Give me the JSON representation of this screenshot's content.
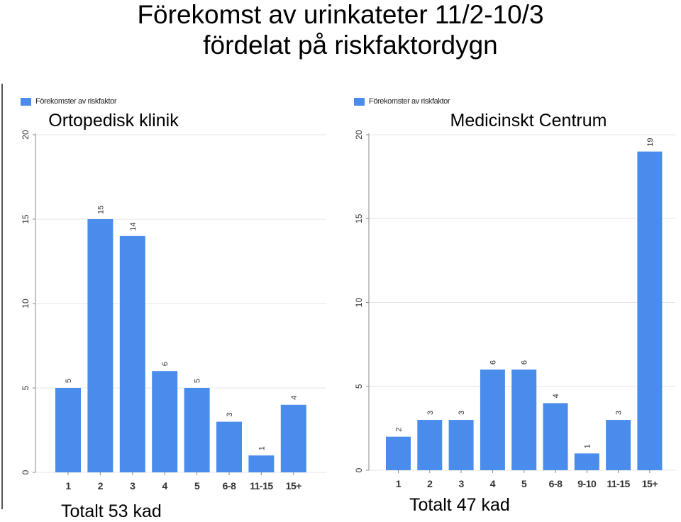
{
  "page": {
    "title_line1": "Förekomst av urinkateter 11/2-10/3",
    "title_line2": "fördelat på riskfaktordygn"
  },
  "colors": {
    "bar": "#4a8cec",
    "axis": "#888888",
    "grid": "#cccccc",
    "separator": "#555555"
  },
  "chart_data": [
    {
      "type": "bar",
      "legend": "Förekomster av riskfaktor",
      "subtitle": "Ortopedisk klinik",
      "total_label": "Totalt 53 kad",
      "categories": [
        "1",
        "2",
        "3",
        "4",
        "5",
        "6-8",
        "11-15",
        "15+"
      ],
      "series": [
        {
          "name": "Förekomster av riskfaktor",
          "values": [
            5,
            15,
            14,
            6,
            5,
            3,
            1,
            4
          ]
        }
      ],
      "ylim": [
        0,
        20
      ],
      "yticks": [
        0,
        5,
        10,
        15,
        20
      ],
      "grid": false,
      "legend_position": "top-left"
    },
    {
      "type": "bar",
      "legend": "Förekomster av riskfaktor",
      "subtitle": "Medicinskt Centrum",
      "total_label": "Totalt 47 kad",
      "categories": [
        "1",
        "2",
        "3",
        "4",
        "5",
        "6-8",
        "9-10",
        "11-15",
        "15+"
      ],
      "series": [
        {
          "name": "Förekomster av riskfaktor",
          "values": [
            2,
            3,
            3,
            6,
            6,
            4,
            1,
            3,
            19
          ]
        }
      ],
      "ylim": [
        0,
        20
      ],
      "yticks": [
        0,
        5,
        10,
        15,
        20
      ],
      "grid": false,
      "legend_position": "top-left"
    }
  ]
}
